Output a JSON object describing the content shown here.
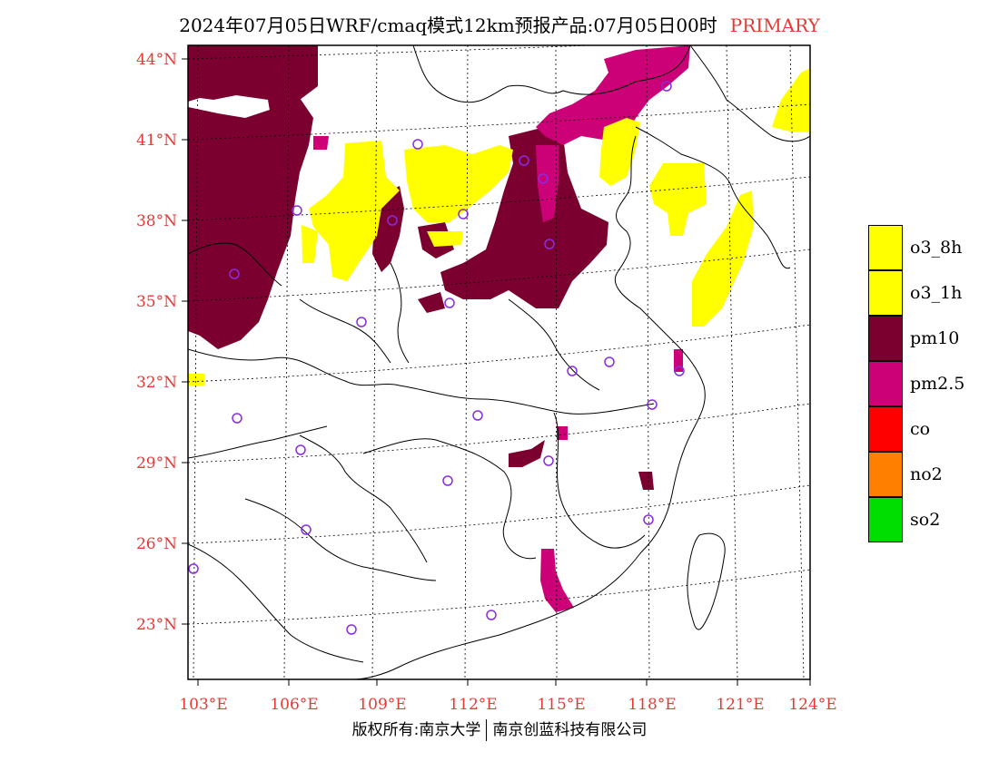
{
  "header": {
    "title": "2024年07月05日WRF/cmaq模式12km预报产品:07月05日00时",
    "status": "PRIMARY"
  },
  "map": {
    "lat_labels": [
      "44°N",
      "41°N",
      "38°N",
      "35°N",
      "32°N",
      "29°N",
      "26°N",
      "23°N"
    ],
    "lon_labels": [
      "103°E",
      "106°E",
      "109°E",
      "112°E",
      "115°E",
      "118°E",
      "121°E",
      "124°E"
    ],
    "label_color": "#e53935",
    "station_color": "#8a2be2"
  },
  "legend": {
    "items": [
      {
        "label": "o3_8h",
        "color": "#ffff00"
      },
      {
        "label": "o3_1h",
        "color": "#ffff00"
      },
      {
        "label": "pm10",
        "color": "#7b0030"
      },
      {
        "label": "pm2.5",
        "color": "#cc0077"
      },
      {
        "label": "co",
        "color": "#ff0000"
      },
      {
        "label": "no2",
        "color": "#ff8000"
      },
      {
        "label": "so2",
        "color": "#00dd00"
      }
    ]
  },
  "footer": {
    "left": "版权所有:南京大学",
    "right": "南京创蓝科技有限公司"
  }
}
